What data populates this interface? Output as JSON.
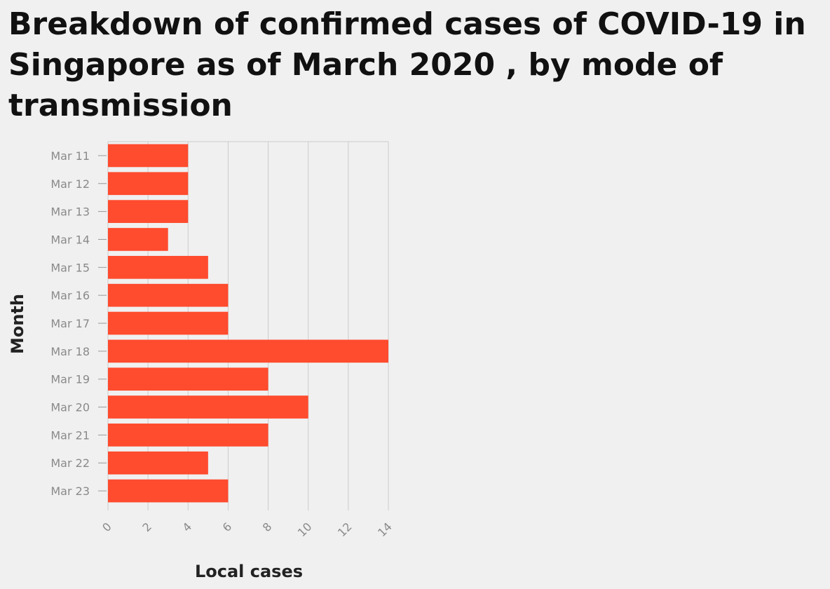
{
  "chart_data": {
    "type": "bar",
    "orientation": "horizontal",
    "title": "Breakdown of confirmed cases of COVID-19 in Singapore as of March 2020 , by mode of transmission",
    "xlabel": "Local cases",
    "ylabel": "Month",
    "categories": [
      "Mar 11",
      "Mar 12",
      "Mar 13",
      "Mar 14",
      "Mar 15",
      "Mar 16",
      "Mar 17",
      "Mar 18",
      "Mar 19",
      "Mar 20",
      "Mar 21",
      "Mar 22",
      "Mar 23"
    ],
    "values": [
      4,
      4,
      4,
      3,
      5,
      6,
      6,
      14,
      8,
      10,
      8,
      5,
      6
    ],
    "xlim": [
      0,
      14
    ],
    "xticks": [
      0,
      2,
      4,
      6,
      8,
      10,
      12,
      14
    ],
    "grid": "vertical",
    "legend": "none",
    "bar_color": "#ff4b2e",
    "grid_color": "#cccccc"
  }
}
